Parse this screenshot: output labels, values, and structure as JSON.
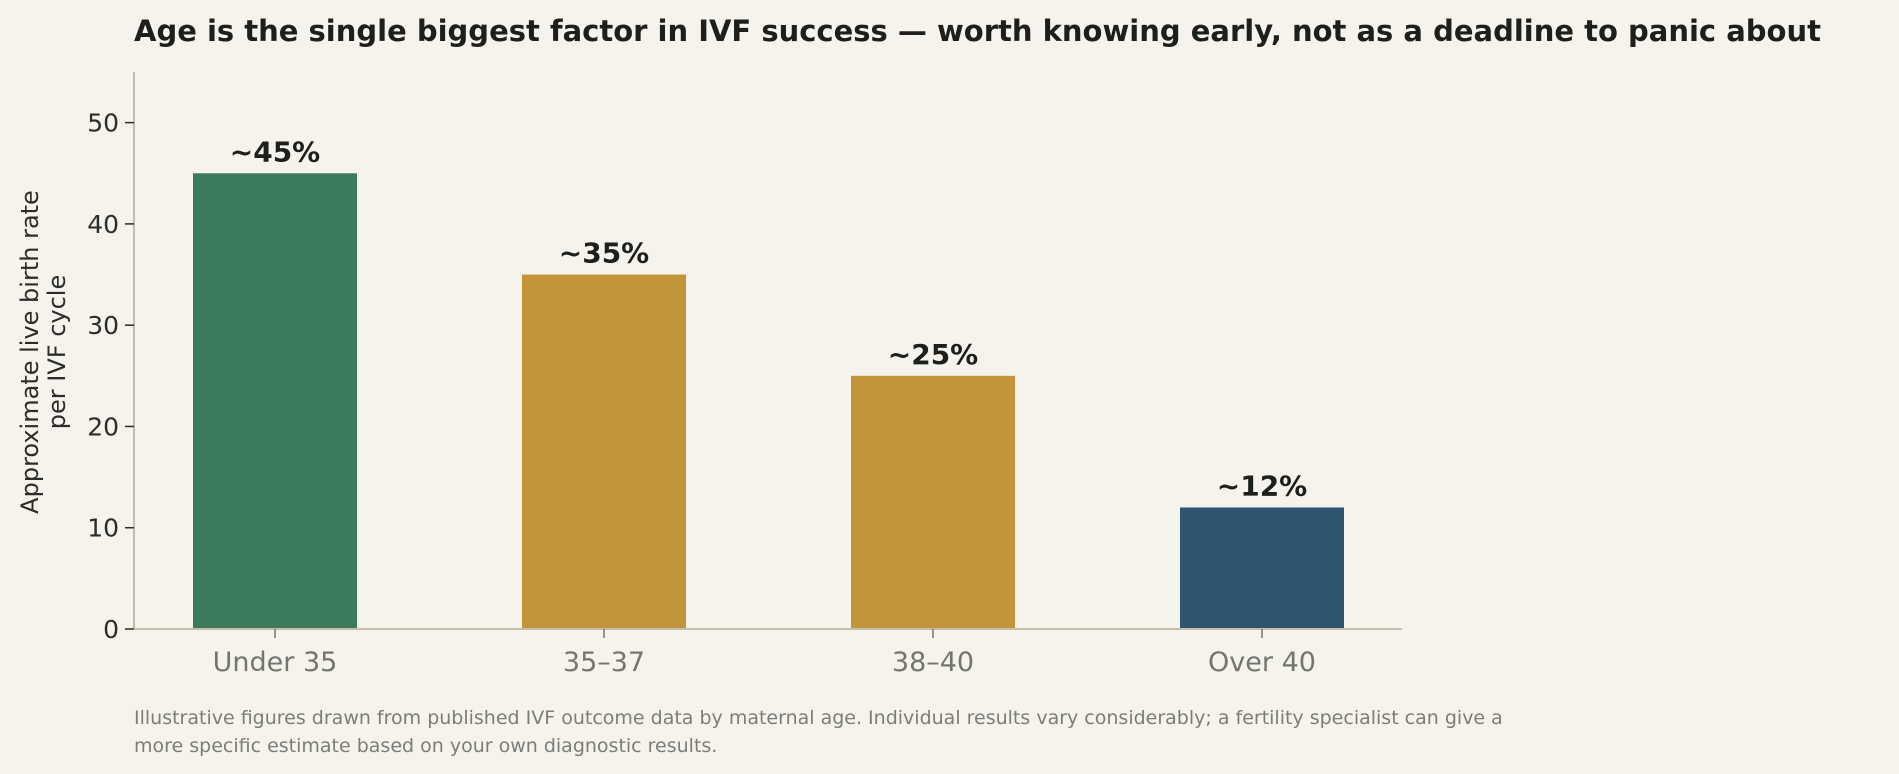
{
  "chart_data": {
    "type": "bar",
    "title": "Age is the single biggest factor in IVF success — worth knowing early, not as a deadline to panic about",
    "xlabel": "",
    "ylabel": [
      "Approximate live birth rate",
      "per IVF cycle"
    ],
    "categories": [
      "Under 35",
      "35–37",
      "38–40",
      "Over 40"
    ],
    "values": [
      45,
      35,
      25,
      12
    ],
    "data_labels": [
      "~45%",
      "~35%",
      "~25%",
      "~12%"
    ],
    "bar_colors": [
      "#3b7a5c",
      "#c2953a",
      "#c2953a",
      "#2e5470"
    ],
    "ylim": [
      0,
      55
    ],
    "yticks": [
      0,
      10,
      20,
      30,
      40,
      50
    ],
    "grid": false,
    "legend": "none"
  },
  "footnote": {
    "lines": [
      "Illustrative figures drawn from published IVF outcome data by maternal age. Individual results vary considerably; a fertility specialist can give a",
      "more specific estimate based on your own diagnostic results."
    ]
  }
}
